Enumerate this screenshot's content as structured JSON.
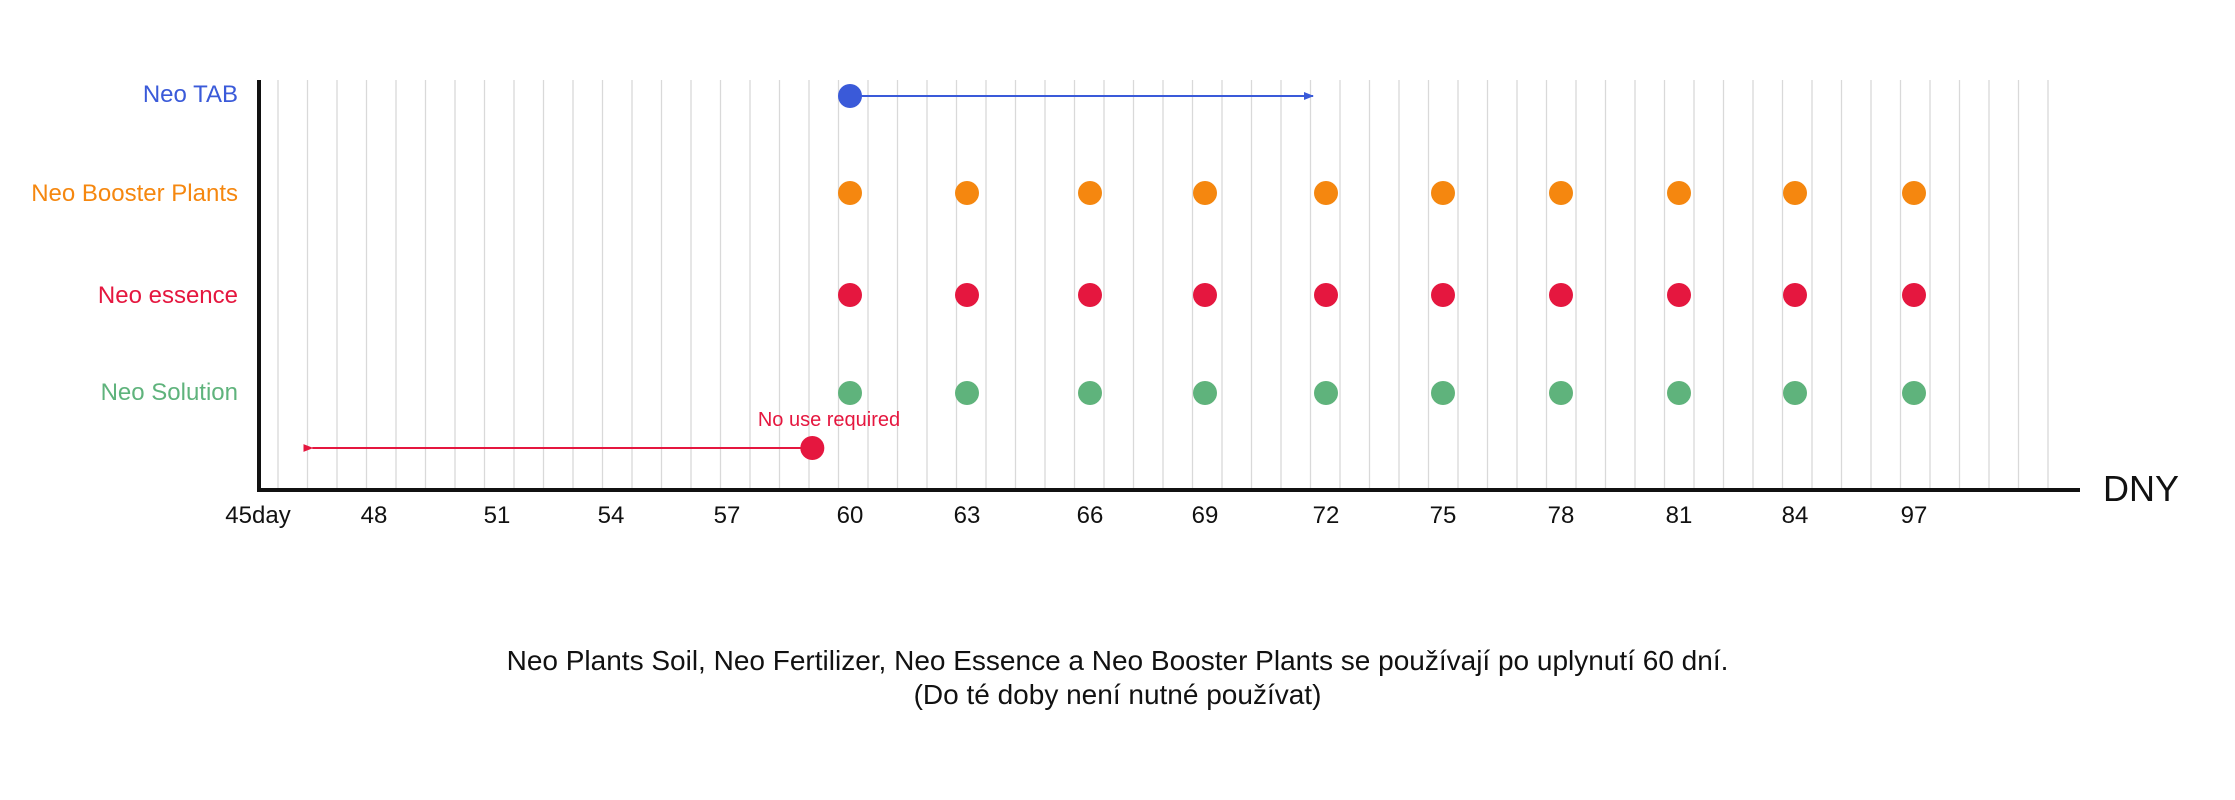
{
  "chart_data": {
    "type": "scatter",
    "xlabel": "DNY",
    "x_tick_labels": [
      "45day",
      "48",
      "51",
      "54",
      "57",
      "60",
      "63",
      "66",
      "69",
      "72",
      "75",
      "78",
      "81",
      "84",
      "97"
    ],
    "series": [
      {
        "name": "Neo TAB",
        "color": "#3a5ad9",
        "points": [
          "60"
        ],
        "arrow": {
          "from": "60",
          "to": "72",
          "direction": "right"
        }
      },
      {
        "name": "Neo Booster Plants",
        "color": "#f5870f",
        "points": [
          "60",
          "63",
          "66",
          "69",
          "72",
          "75",
          "78",
          "81",
          "84",
          "97"
        ]
      },
      {
        "name": "Neo essence",
        "color": "#e5173f",
        "points": [
          "60",
          "63",
          "66",
          "69",
          "72",
          "75",
          "78",
          "81",
          "84",
          "97"
        ]
      },
      {
        "name": "Neo Solution",
        "color": "#5fb37c",
        "points": [
          "60",
          "63",
          "66",
          "69",
          "72",
          "75",
          "78",
          "81",
          "84",
          "97"
        ]
      }
    ],
    "annotation": {
      "text": "No use required",
      "color": "#e5173f",
      "marker_at_day": 59,
      "arrow_to_day": 47
    },
    "grid": true,
    "axis_color": "#111111"
  },
  "caption": {
    "line1": "Neo Plants Soil, Neo Fertilizer, Neo Essence a Neo Booster Plants se používají po uplynutí 60 dní.",
    "line2": "(Do té doby není nutné používat)"
  }
}
